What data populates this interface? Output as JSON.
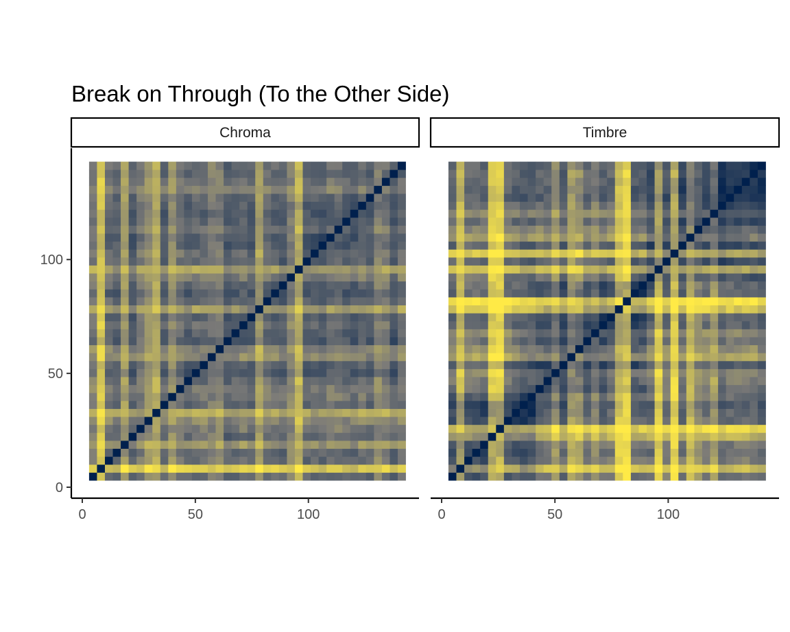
{
  "chart_data": {
    "type": "heatmap",
    "title": "Break on Through (To the Other Side)",
    "xlabel": "",
    "ylabel": "",
    "xlim": [
      0,
      148
    ],
    "ylim": [
      0,
      148
    ],
    "xticks": [
      0,
      50,
      100
    ],
    "yticks": [
      0,
      50,
      100
    ],
    "grid": false,
    "legend": "none",
    "colors": {
      "low": "#00204d",
      "mid": "#7c7b78",
      "high": "#ffea46",
      "panel_bg": "#ffffff"
    },
    "panels": [
      {
        "name": "Chroma",
        "grid_size": 40,
        "extent": [
          3,
          143
        ],
        "diagonal": true,
        "bright_bands": [
          0.8,
          7.6,
          25.6,
          40.4,
          41.2,
          47.2,
          53.8,
          57,
          59.6,
          68,
          93.6,
          102
        ],
        "moderate_bands": [
          3.8,
          6.4,
          10.4,
          15.4,
          21.2,
          36.4,
          53.8,
          58.4,
          68,
          76.4,
          80,
          82.8,
          89.6,
          93,
          97
        ],
        "block_boundaries": [],
        "base_level": 0.36
      },
      {
        "name": "Timbre",
        "grid_size": 40,
        "extent": [
          3,
          143
        ],
        "diagonal": true,
        "bright_bands": [
          1.2,
          4.8,
          6,
          15.4,
          21.2,
          22,
          26.2,
          27.8,
          30.4,
          59.6,
          62,
          63.6,
          82.8,
          85.4
        ],
        "moderate_bands": [
          12.6,
          17.6,
          30,
          33.2,
          56.8,
          58.4,
          62.8,
          75.4,
          81.6,
          88.6
        ],
        "block_boundaries": [
          26,
          62
        ],
        "base_level": 0.33
      }
    ]
  }
}
